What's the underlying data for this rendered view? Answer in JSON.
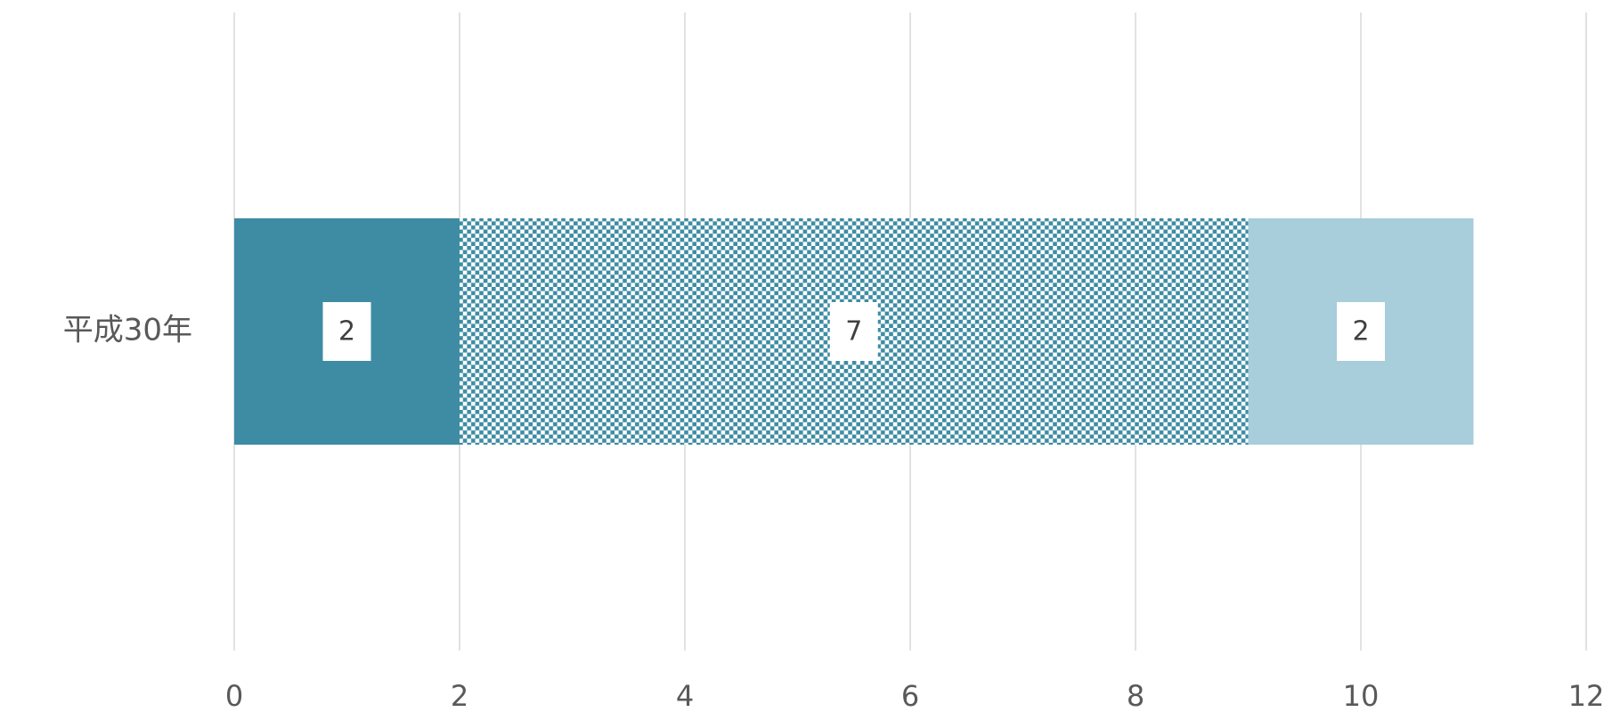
{
  "chart_data": {
    "type": "stacked_barh",
    "categories": [
      "平成30年"
    ],
    "series": [
      {
        "color": "#3d8ca3",
        "values": [
          2
        ]
      },
      {
        "color": "#3d8ca3",
        "pattern": "checker",
        "values": [
          7
        ]
      },
      {
        "color": "#a8cddb",
        "values": [
          2
        ]
      }
    ],
    "xlim": [
      0,
      12
    ],
    "xticks": [
      0,
      2,
      4,
      6,
      8,
      10,
      12
    ],
    "grid": true
  }
}
